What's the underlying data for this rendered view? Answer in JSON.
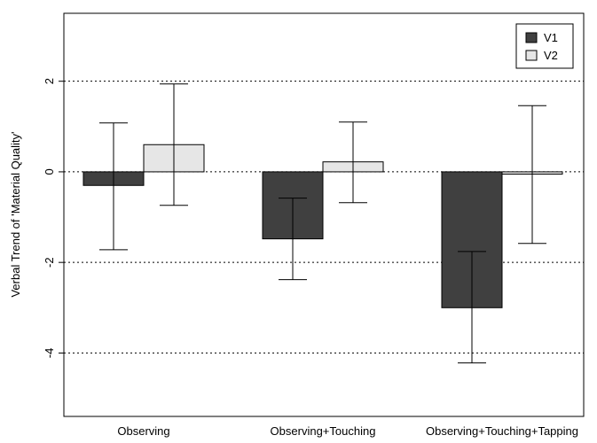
{
  "chart_data": {
    "type": "bar",
    "title": "",
    "xlabel": "",
    "ylabel": "Verbal Trend of 'Material Quality'",
    "categories": [
      "Observing",
      "Observing+Touching",
      "Observing+Touching+Tapping"
    ],
    "series": [
      {
        "name": "V1",
        "color": "#404040",
        "values": [
          -0.3,
          -1.48,
          -3.0
        ],
        "err_low": [
          -1.72,
          -2.38,
          -4.22
        ],
        "err_high": [
          1.08,
          -0.58,
          -1.76
        ]
      },
      {
        "name": "V2",
        "color": "#e6e6e6",
        "values": [
          0.6,
          0.22,
          -0.05
        ],
        "err_low": [
          -0.74,
          -0.68,
          -1.58
        ],
        "err_high": [
          1.94,
          1.1,
          1.46
        ]
      }
    ],
    "ylim": [
      -5.4,
      3.5
    ],
    "yticks": [
      -4,
      -2,
      0,
      2
    ],
    "ytick_labels": [
      "-4",
      "-2",
      "0",
      "2"
    ],
    "grid": {
      "y_dotted": [
        -4,
        -2,
        0,
        2
      ]
    },
    "legend_position": "top-right"
  }
}
